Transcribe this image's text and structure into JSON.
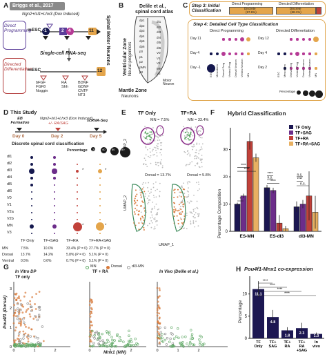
{
  "panelA": {
    "letter": "A",
    "ref": "Briggs et al., 2017",
    "construct": "Ngn2+Isl1+Lhx3 (Dox Induced)",
    "direct_label": "Direct Programming",
    "directed_label": "Directed Differentiation",
    "mesc": "mESC",
    "mesc2": "mESC",
    "days": [
      "-1",
      "0",
      "2",
      "4",
      "11",
      "12"
    ],
    "sc_label": "Single-cell RNA-seq",
    "side_label": "Spinal Motor Neurons",
    "f1": "bFGF",
    "f2": "FGF8",
    "f3": "Noggin",
    "f4": "RA",
    "f5": "Shh",
    "f6": "BDNF",
    "f7": "GDNF",
    "f8": "CNTF",
    "f9": "NT3"
  },
  "panelB": {
    "letter": "B",
    "title1": "Delile et al.,",
    "title2": "spinal cord atlas",
    "vz1": "Ventricular Zone",
    "vz2": "Neural progenitors",
    "mz1": "Mantle Zone",
    "mz2": "Neurons",
    "motor": "Motor Neuron",
    "domains_left": [
      "dp1",
      "dp2",
      "dp3",
      "dp4",
      "dp5",
      "dp6",
      "p0",
      "p1",
      "p2",
      "pMN",
      "p3"
    ],
    "domains_right": [
      "dI1",
      "dI2",
      "dI3",
      "dI4",
      "dI5",
      "dI6",
      "V0",
      "V1",
      "V2",
      "MN",
      "V3"
    ]
  },
  "panelC": {
    "letter": "C",
    "step3": "Step 3: Initial Classification",
    "direct_prog": "Direct Programming",
    "directed_diff": "Directed Differentiation",
    "bar1_top": "Discrete",
    "bar1_pct": "(97.6%)",
    "bar2_top": "Discrete",
    "bar2_pct": "(88.1%)",
    "step4": "Step 4: Detailed Cell Type Classification",
    "sub_left": "Direct Programming",
    "sub_right": "Directed Differentiation",
    "rows_left": [
      "Day 11",
      "Day 4",
      "Day -1"
    ],
    "rows_right": [
      "Day 12",
      "Day 4",
      "Day 2"
    ],
    "cols": [
      "ESC",
      "Mesoderm",
      "Dorsal Prog",
      "Ventral Prog",
      "Dorsal Neuron",
      "Ventral Neuron",
      "MN"
    ],
    "perc_label": "Percentage"
  },
  "panelD": {
    "letter": "D",
    "title": "This Study",
    "construct": "Ngn2+Isl1+Lhx3 (Dox Induced)",
    "agents": "+/- RA/SAG",
    "eb": "EB Formation",
    "sc": "scRNA-Seq",
    "day0": "Day 0",
    "day2": "Day 2",
    "day5": "Day 5",
    "subtitle": "Discrete spinal cord classification",
    "perc_label": "Percentage",
    "legend": [
      "20",
      "40",
      "60",
      "80"
    ],
    "rows": [
      "dl1",
      "dl2",
      "dl3",
      "dl4",
      "dl5",
      "dl6",
      "V0",
      "V1",
      "V2a",
      "V2b",
      "MN",
      "V3"
    ],
    "cols": [
      "TF Only",
      "TF+SAG",
      "TF+RA",
      "TF+RA+SAG"
    ],
    "table_rows": [
      "MN",
      "Dorsal",
      "Ventral"
    ],
    "table": [
      [
        "7.5%",
        "10.0%",
        "33.4% (P = 0)",
        "27.7% (P = 0)"
      ],
      [
        "13.7%",
        "14.2%",
        "5.8% (P = 0)",
        "5.1% (P = 0)"
      ],
      [
        "0.5%",
        "0.6%",
        "0.7% (P = 0)",
        "5.1% (P = 0)"
      ]
    ]
  },
  "panelE": {
    "letter": "E",
    "col1": "TF Only",
    "col2": "TF+RA",
    "mn1": "MN = 7.5%",
    "mn2": "MN = 33.4%",
    "dor1": "Dorsal = 13.7%",
    "dor2": "Dorsal = 5.8%",
    "ylab": "UMAP_2",
    "ylab2": "UMAP_2",
    "xlab": "UMAP_1"
  },
  "panelF": {
    "letter": "F",
    "title": "Hybrid Classification",
    "ylabel": "Percentage Composition",
    "legend": [
      "TF Only",
      "TF+SAG",
      "TF+RA",
      "TF+RA+SAG"
    ],
    "colors": [
      "#1c1752",
      "#6c2d8a",
      "#c1413a",
      "#e8b061"
    ],
    "sig": [
      "*",
      "****",
      "****",
      "****",
      "n.s.",
      "****",
      "n.s.",
      "****",
      "n.s."
    ],
    "chart_data": {
      "type": "bar",
      "categories": [
        "ES-MN",
        "ES-dI3",
        "dI3-MN"
      ],
      "series": [
        {
          "name": "TF Only",
          "values": [
            10,
            16,
            9
          ]
        },
        {
          "name": "TF+SAG",
          "values": [
            13,
            15,
            10
          ]
        },
        {
          "name": "TF+RA",
          "values": [
            33,
            3,
            13
          ]
        },
        {
          "name": "TF+RA+SAG",
          "values": [
            27,
            1,
            7
          ]
        }
      ],
      "yticks": [
        "0",
        "10",
        "20",
        "30"
      ],
      "ylim": [
        0,
        38
      ]
    }
  },
  "panelG": {
    "letter": "G",
    "legend": [
      "MN",
      "Dorsal",
      "dl3-MN"
    ],
    "sub1a": "In Vitro DP",
    "sub1b": "TF only",
    "sub2": "TF + RA",
    "sub3": "In Vivo (Delile et al.)",
    "ylabel": "Pou4f1 (Dorsal)",
    "xlabel": "Mnx1 (MN)",
    "xticks": [
      "0",
      "1",
      "2"
    ],
    "yticks": [
      "0",
      "1",
      "2",
      "3"
    ]
  },
  "panelH": {
    "letter": "H",
    "title": "Pou4f1-Mnx1 co-expression",
    "ylabel": "Percentage",
    "chart_data": {
      "type": "bar",
      "categories": [
        "TF Only",
        "TF+ SAG",
        "TF+ RA",
        "TF+ RA +SAG",
        "In vivo"
      ],
      "values": [
        11.1,
        4.8,
        1.8,
        2.3,
        1.0
      ],
      "labels": [
        "11.1",
        "4.8",
        "1.8",
        "2.3",
        "1.0"
      ],
      "yticks": [
        "0",
        "5",
        "10"
      ],
      "ylim": [
        0,
        14
      ]
    },
    "sig": [
      "****",
      "****",
      "****",
      "****"
    ]
  }
}
